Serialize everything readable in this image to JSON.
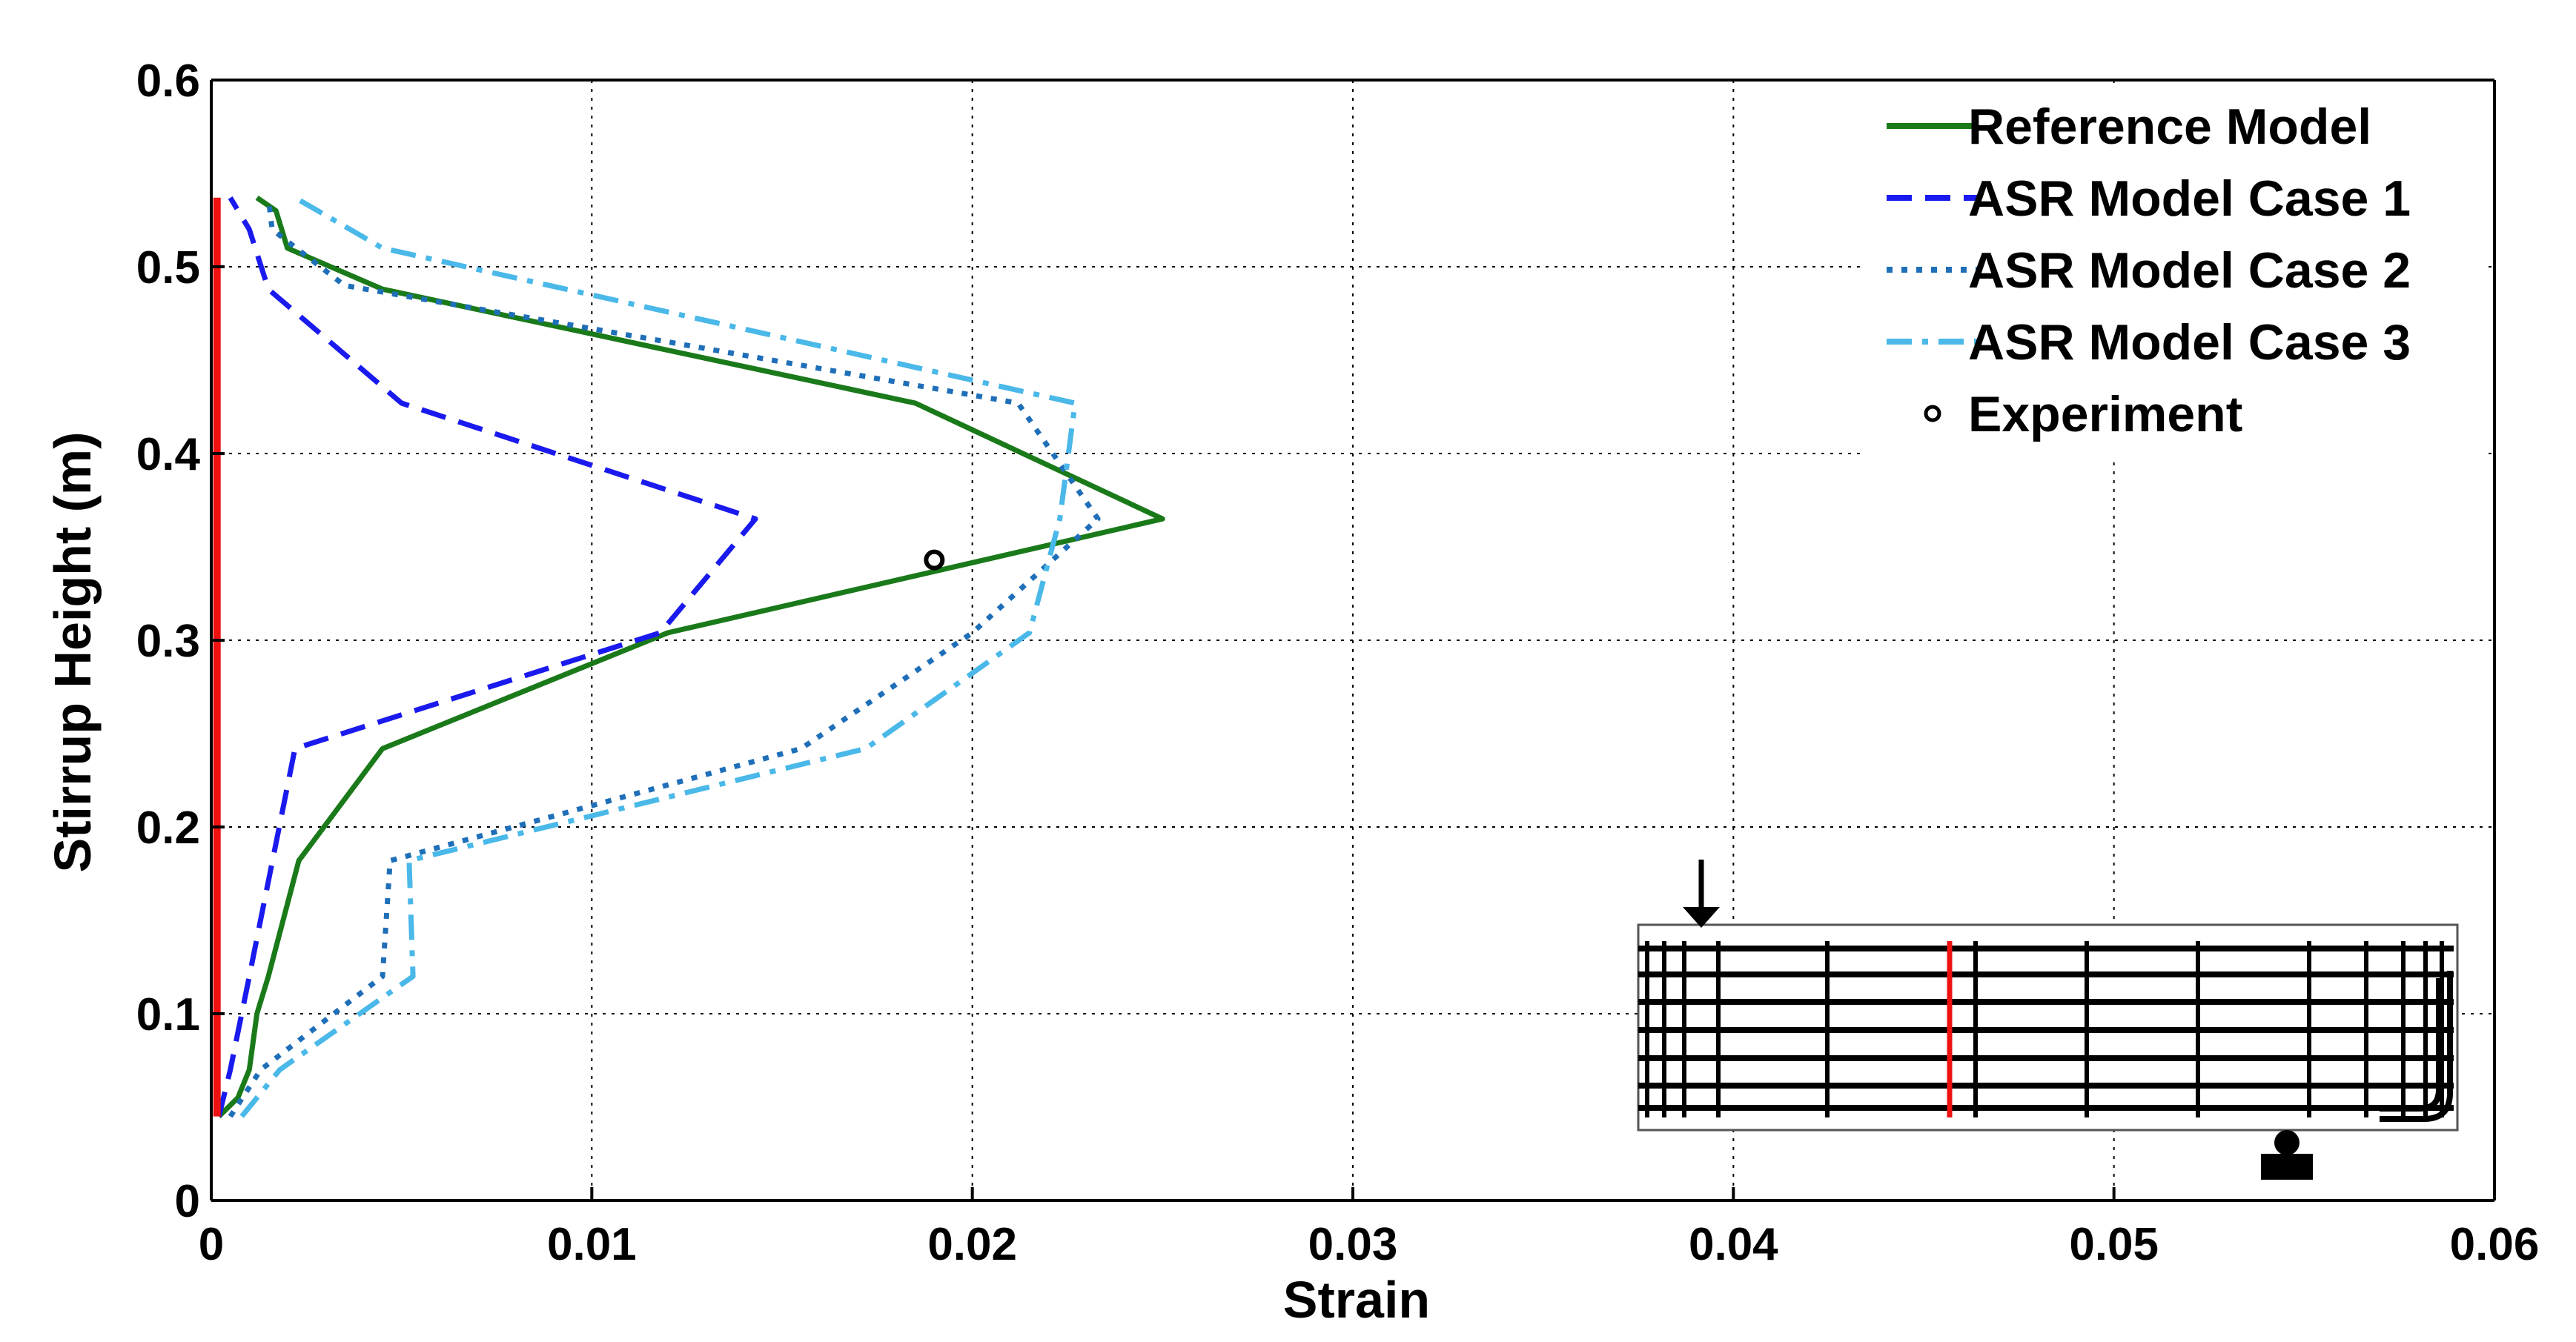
{
  "chart_data": {
    "type": "line",
    "xlabel": "Strain",
    "ylabel": "Stirrup Height (m)",
    "xlim": [
      0,
      0.06
    ],
    "ylim": [
      0,
      0.6
    ],
    "xticks": [
      0,
      0.01,
      0.02,
      0.03,
      0.04,
      0.05,
      0.06
    ],
    "xtick_labels": [
      "0",
      "0.01",
      "0.02",
      "0.03",
      "0.04",
      "0.05",
      "0.06"
    ],
    "yticks": [
      0,
      0.1,
      0.2,
      0.3,
      0.4,
      0.5,
      0.6
    ],
    "ytick_labels": [
      "0",
      "0.1",
      "0.2",
      "0.3",
      "0.4",
      "0.5",
      "0.6"
    ],
    "grid": true,
    "legend_position": "top-right",
    "series": [
      {
        "name": "Reference Model",
        "color": "#1a7a1a",
        "style": "solid",
        "points": [
          [
            0.0002,
            0.045
          ],
          [
            0.0007,
            0.055
          ],
          [
            0.001,
            0.07
          ],
          [
            0.0012,
            0.1
          ],
          [
            0.0015,
            0.12
          ],
          [
            0.0023,
            0.182
          ],
          [
            0.0045,
            0.242
          ],
          [
            0.012,
            0.304
          ],
          [
            0.025,
            0.365
          ],
          [
            0.0185,
            0.427
          ],
          [
            0.0045,
            0.488
          ],
          [
            0.002,
            0.51
          ],
          [
            0.0017,
            0.53
          ],
          [
            0.0012,
            0.537
          ]
        ]
      },
      {
        "name": "ASR Model Case 1",
        "color": "#1a1aee",
        "style": "dashed",
        "points": [
          [
            0.0002,
            0.045
          ],
          [
            0.0005,
            0.07
          ],
          [
            0.001,
            0.12
          ],
          [
            0.0022,
            0.242
          ],
          [
            0.0118,
            0.304
          ],
          [
            0.0143,
            0.365
          ],
          [
            0.005,
            0.427
          ],
          [
            0.0015,
            0.488
          ],
          [
            0.001,
            0.52
          ],
          [
            0.0005,
            0.537
          ]
        ]
      },
      {
        "name": "ASR Model Case 2",
        "color": "#1f6fb8",
        "style": "dotted",
        "points": [
          [
            0.0005,
            0.045
          ],
          [
            0.0013,
            0.07
          ],
          [
            0.0045,
            0.12
          ],
          [
            0.0047,
            0.182
          ],
          [
            0.0155,
            0.242
          ],
          [
            0.02,
            0.304
          ],
          [
            0.0233,
            0.365
          ],
          [
            0.0212,
            0.427
          ],
          [
            0.0035,
            0.49
          ],
          [
            0.0016,
            0.52
          ],
          [
            0.0015,
            0.537
          ]
        ]
      },
      {
        "name": "ASR Model Case 3",
        "color": "#4ab8e8",
        "style": "dashdot",
        "points": [
          [
            0.0008,
            0.045
          ],
          [
            0.0018,
            0.07
          ],
          [
            0.0053,
            0.12
          ],
          [
            0.0052,
            0.182
          ],
          [
            0.0172,
            0.242
          ],
          [
            0.0215,
            0.304
          ],
          [
            0.0223,
            0.365
          ],
          [
            0.0227,
            0.427
          ],
          [
            0.0045,
            0.51
          ],
          [
            0.0028,
            0.53
          ],
          [
            0.0022,
            0.537
          ]
        ]
      },
      {
        "name": "Experiment",
        "color": "#000000",
        "style": "marker",
        "points": [
          [
            0.019,
            0.343
          ]
        ]
      }
    ],
    "reference_line": {
      "color": "#ee1111",
      "x": 0.00015,
      "y": [
        0.045,
        0.537
      ]
    }
  }
}
